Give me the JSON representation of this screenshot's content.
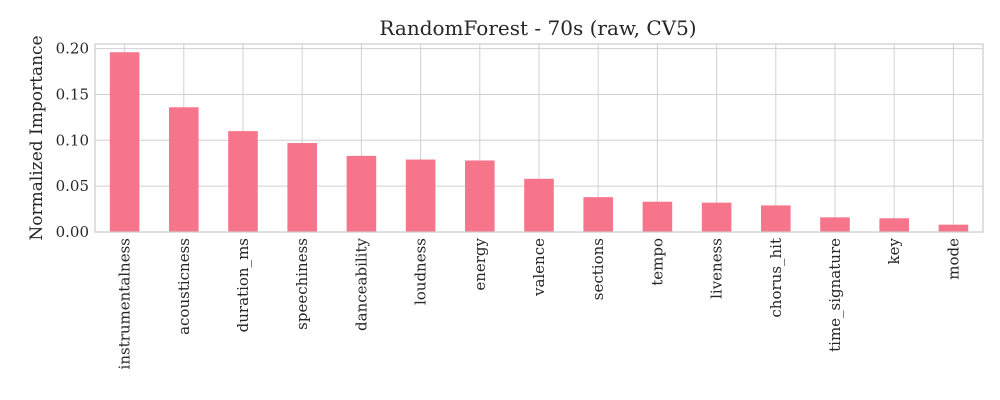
{
  "chart_data": {
    "type": "bar",
    "title": "RandomForest - 70s (raw, CV5)",
    "xlabel": "",
    "ylabel": "Normalized Importance",
    "categories": [
      "instrumentalness",
      "acousticness",
      "duration_ms",
      "speechiness",
      "danceability",
      "loudness",
      "energy",
      "valence",
      "sections",
      "tempo",
      "liveness",
      "chorus_hit",
      "time_signature",
      "key",
      "mode"
    ],
    "values": [
      0.196,
      0.136,
      0.11,
      0.097,
      0.083,
      0.079,
      0.078,
      0.058,
      0.038,
      0.033,
      0.032,
      0.029,
      0.016,
      0.015,
      0.008
    ],
    "ylim": [
      0,
      0.205
    ],
    "yticks": [
      0.0,
      0.05,
      0.1,
      0.15,
      0.2
    ],
    "ytick_labels": [
      "0.00",
      "0.05",
      "0.10",
      "0.15",
      "0.20"
    ],
    "grid": true,
    "bar_color": "#f7758b",
    "grid_color": "#d0d0d0",
    "frame_color": "#cccccc"
  }
}
